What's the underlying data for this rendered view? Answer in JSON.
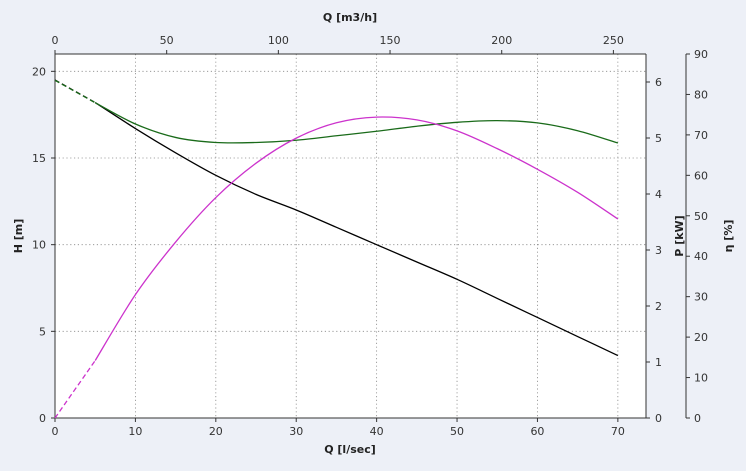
{
  "chart_data": {
    "type": "line",
    "axes": {
      "x_bottom": {
        "label": "Q [l/sec]",
        "range": [
          0,
          73.5
        ],
        "ticks": [
          0,
          10,
          20,
          30,
          40,
          50,
          60,
          70
        ]
      },
      "x_top": {
        "label": "Q [m3/h]",
        "range": [
          0,
          264.6
        ],
        "ticks": [
          0,
          50,
          100,
          150,
          200,
          250
        ]
      },
      "y_left": {
        "label": "H [m]",
        "range": [
          0,
          21
        ],
        "ticks": [
          0,
          5,
          10,
          15,
          20
        ]
      },
      "y_right_power": {
        "label": "P [kW]",
        "range": [
          0,
          6.5
        ],
        "ticks": [
          0,
          1,
          2,
          3,
          4,
          5,
          6
        ]
      },
      "y_right_eff": {
        "label": "η [%]",
        "range": [
          0,
          90
        ],
        "ticks": [
          0,
          10,
          20,
          30,
          40,
          50,
          60,
          70,
          80,
          90
        ]
      }
    },
    "grid": true,
    "series": [
      {
        "axis": "y_left",
        "color": "#000000",
        "dashed_until": 5,
        "x": [
          0,
          5,
          10,
          15,
          20,
          25,
          30,
          35,
          40,
          45,
          50,
          55,
          60,
          65,
          70
        ],
        "y": [
          19.5,
          18.2,
          16.7,
          15.3,
          14.0,
          12.9,
          12.0,
          11.0,
          10.0,
          9.0,
          8.0,
          6.9,
          5.8,
          4.7,
          3.6
        ]
      },
      {
        "axis": "y_right_power",
        "color": "#1a6b1a",
        "dashed_until": 5,
        "x": [
          0,
          5,
          10,
          15,
          20,
          25,
          30,
          35,
          40,
          45,
          50,
          55,
          60,
          65,
          70
        ],
        "y": [
          6.03,
          5.63,
          5.25,
          5.01,
          4.92,
          4.92,
          4.96,
          5.04,
          5.12,
          5.21,
          5.28,
          5.31,
          5.27,
          5.13,
          4.91
        ]
      },
      {
        "axis": "y_right_eff",
        "color": "#cc33cc",
        "dashed_until": 5,
        "x": [
          0,
          5,
          10,
          15,
          20,
          25,
          30,
          35,
          40,
          45,
          50,
          55,
          60,
          65,
          70
        ],
        "y": [
          0,
          14.2,
          30.5,
          43.5,
          54.5,
          63.0,
          69.2,
          73.0,
          74.4,
          73.7,
          71.0,
          66.6,
          61.5,
          55.8,
          49.2
        ]
      }
    ]
  }
}
